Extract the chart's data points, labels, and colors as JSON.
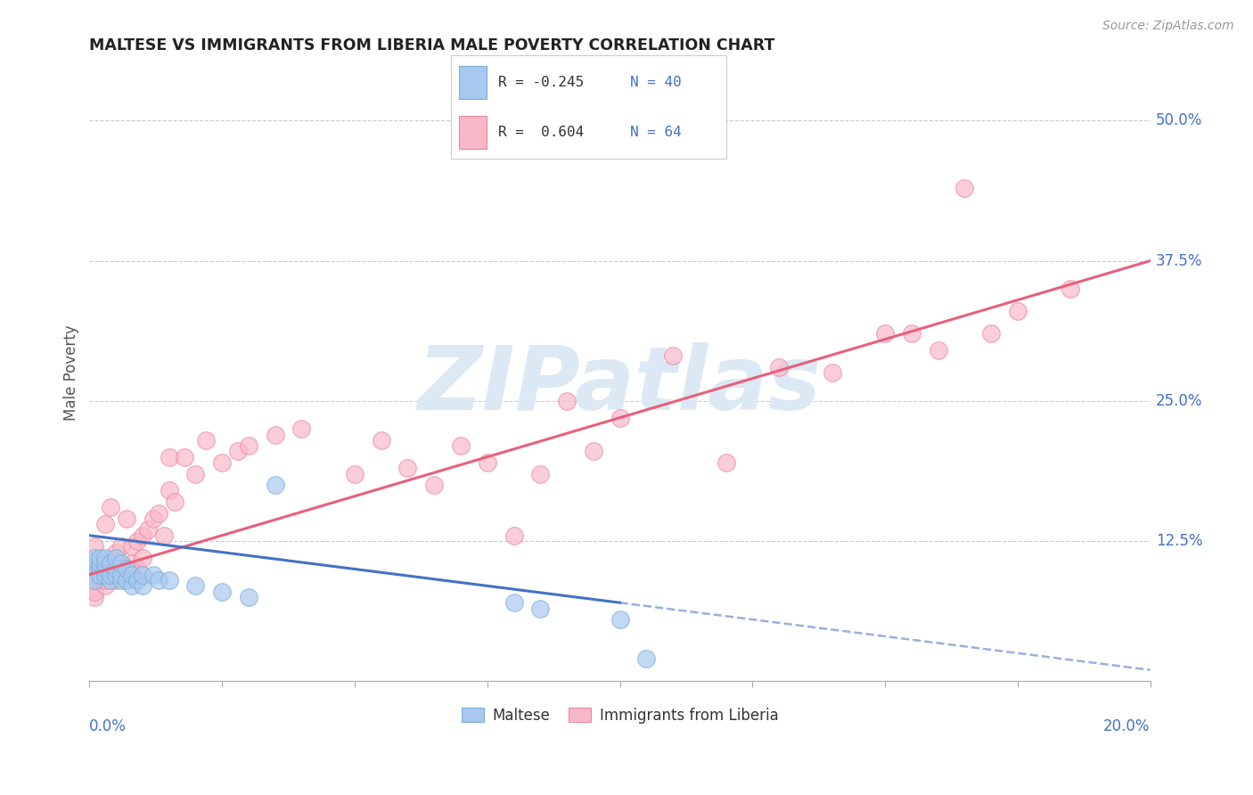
{
  "title": "MALTESE VS IMMIGRANTS FROM LIBERIA MALE POVERTY CORRELATION CHART",
  "source": "Source: ZipAtlas.com",
  "ylabel": "Male Poverty",
  "xlim": [
    0.0,
    0.2
  ],
  "ylim": [
    0.0,
    0.55
  ],
  "yticks": [
    0.0,
    0.125,
    0.25,
    0.375,
    0.5
  ],
  "ytick_labels": [
    "",
    "12.5%",
    "25.0%",
    "37.5%",
    "50.0%"
  ],
  "color_maltese_fill": "#a8c8f0",
  "color_maltese_edge": "#7aaed6",
  "color_liberia_fill": "#f9b8c8",
  "color_liberia_edge": "#e888a0",
  "color_line_maltese": "#4472c4",
  "color_line_liberia": "#e8607a",
  "color_text_blue": "#4472c4",
  "color_axis": "#aaaaaa",
  "background_color": "#ffffff",
  "grid_color": "#cccccc",
  "watermark_text": "ZIPatlas",
  "watermark_color": "#dce9f5",
  "legend_box_color": "#f0f0f0",
  "maltese_x": [
    0.001,
    0.001,
    0.001,
    0.001,
    0.001,
    0.002,
    0.002,
    0.002,
    0.002,
    0.003,
    0.003,
    0.003,
    0.003,
    0.004,
    0.004,
    0.004,
    0.005,
    0.005,
    0.005,
    0.006,
    0.006,
    0.006,
    0.007,
    0.007,
    0.008,
    0.008,
    0.009,
    0.01,
    0.01,
    0.012,
    0.013,
    0.015,
    0.02,
    0.025,
    0.03,
    0.035,
    0.08,
    0.085,
    0.1,
    0.105
  ],
  "maltese_y": [
    0.1,
    0.105,
    0.11,
    0.095,
    0.09,
    0.1,
    0.095,
    0.105,
    0.11,
    0.095,
    0.1,
    0.105,
    0.11,
    0.09,
    0.095,
    0.105,
    0.095,
    0.1,
    0.11,
    0.09,
    0.095,
    0.105,
    0.09,
    0.1,
    0.085,
    0.095,
    0.09,
    0.085,
    0.095,
    0.095,
    0.09,
    0.09,
    0.085,
    0.08,
    0.075,
    0.175,
    0.07,
    0.065,
    0.055,
    0.02
  ],
  "liberia_x": [
    0.001,
    0.001,
    0.001,
    0.001,
    0.002,
    0.002,
    0.002,
    0.003,
    0.003,
    0.003,
    0.003,
    0.004,
    0.004,
    0.004,
    0.005,
    0.005,
    0.005,
    0.006,
    0.006,
    0.007,
    0.007,
    0.008,
    0.008,
    0.009,
    0.009,
    0.01,
    0.01,
    0.011,
    0.012,
    0.013,
    0.014,
    0.015,
    0.015,
    0.016,
    0.018,
    0.02,
    0.022,
    0.025,
    0.028,
    0.03,
    0.035,
    0.04,
    0.05,
    0.055,
    0.06,
    0.065,
    0.07,
    0.075,
    0.08,
    0.085,
    0.09,
    0.095,
    0.1,
    0.11,
    0.12,
    0.13,
    0.14,
    0.15,
    0.155,
    0.16,
    0.165,
    0.17,
    0.175,
    0.185
  ],
  "liberia_y": [
    0.075,
    0.08,
    0.09,
    0.12,
    0.09,
    0.095,
    0.105,
    0.085,
    0.09,
    0.095,
    0.14,
    0.095,
    0.1,
    0.155,
    0.09,
    0.1,
    0.115,
    0.095,
    0.12,
    0.1,
    0.145,
    0.105,
    0.12,
    0.1,
    0.125,
    0.11,
    0.13,
    0.135,
    0.145,
    0.15,
    0.13,
    0.17,
    0.2,
    0.16,
    0.2,
    0.185,
    0.215,
    0.195,
    0.205,
    0.21,
    0.22,
    0.225,
    0.185,
    0.215,
    0.19,
    0.175,
    0.21,
    0.195,
    0.13,
    0.185,
    0.25,
    0.205,
    0.235,
    0.29,
    0.195,
    0.28,
    0.275,
    0.31,
    0.31,
    0.295,
    0.44,
    0.31,
    0.33,
    0.35
  ],
  "trend_maltese_x0": 0.0,
  "trend_maltese_y0": 0.13,
  "trend_maltese_x1": 0.1,
  "trend_maltese_y1": 0.07,
  "trend_maltese_solid_end": 0.1,
  "trend_maltese_dash_end": 0.2,
  "trend_liberia_x0": 0.0,
  "trend_liberia_y0": 0.095,
  "trend_liberia_x1": 0.2,
  "trend_liberia_y1": 0.375
}
